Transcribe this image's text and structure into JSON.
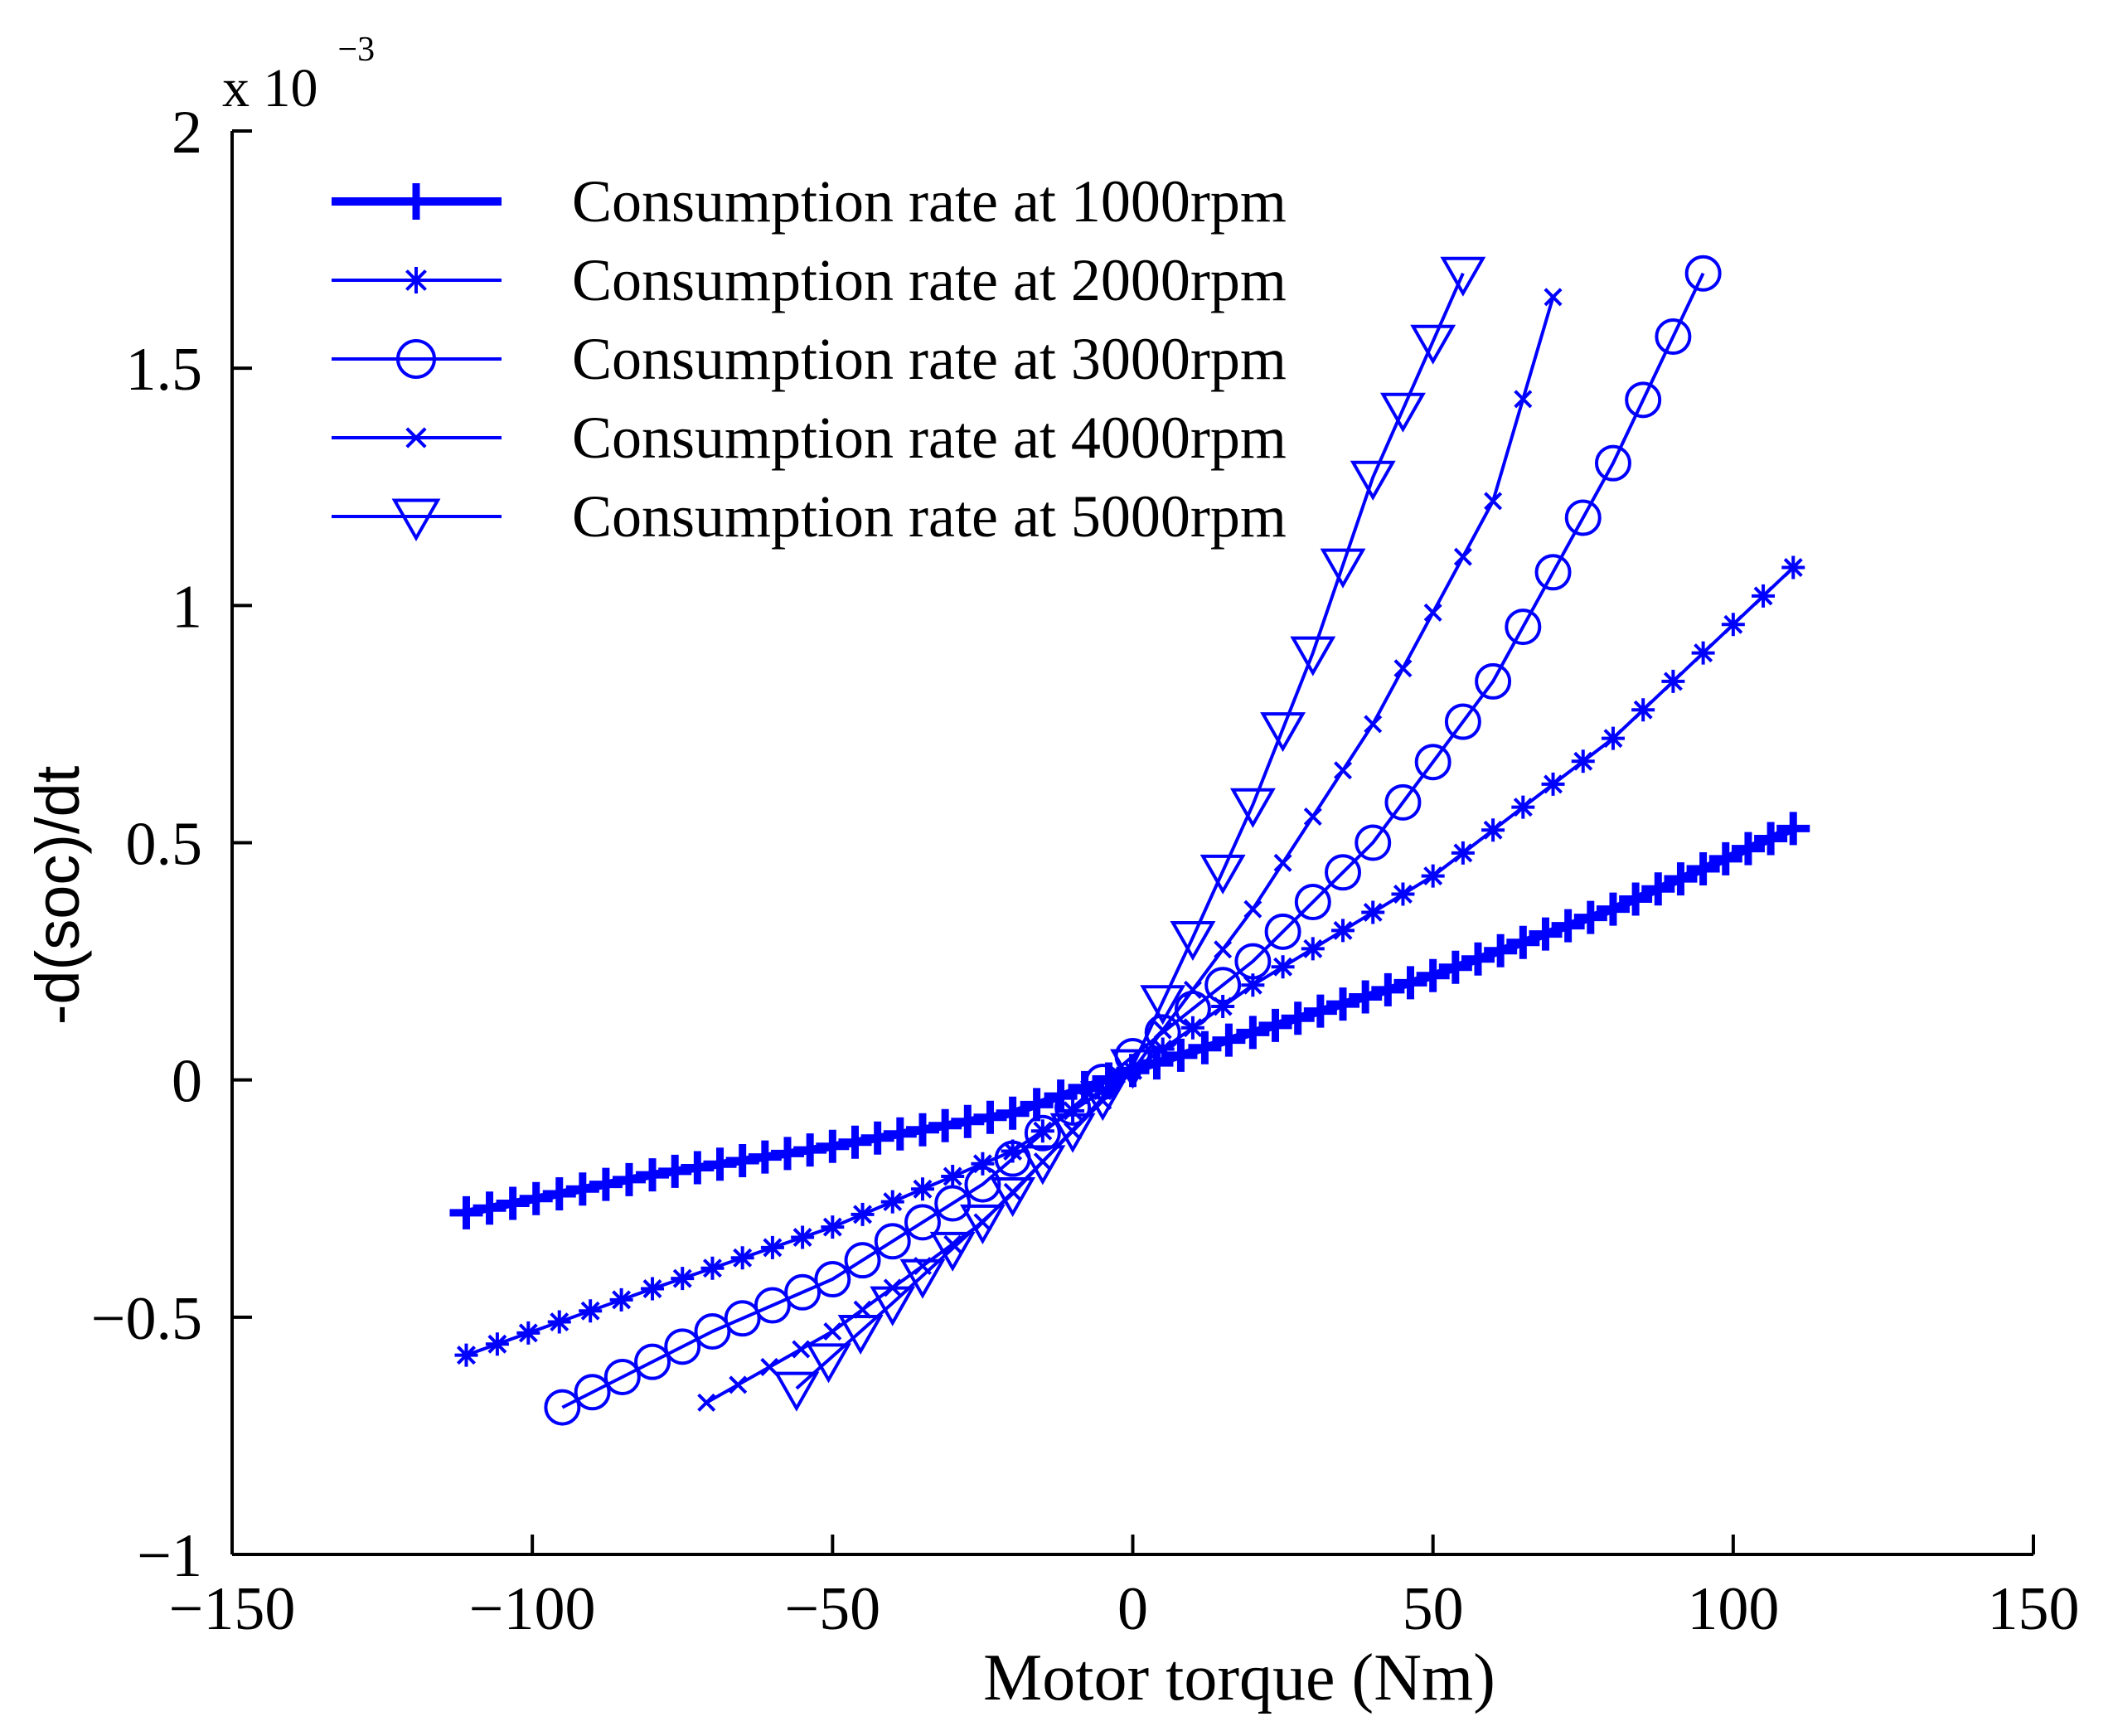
{
  "chart_data": {
    "type": "line",
    "title": "",
    "xlabel": "Motor torque (Nm)",
    "ylabel": "-d(soc)/dt",
    "y_multiplier_base": "x 10",
    "y_multiplier_exponent": "−3",
    "xlim": [
      -150,
      150
    ],
    "ylim": [
      -1,
      2
    ],
    "xticks": [
      -150,
      -100,
      -50,
      0,
      50,
      100,
      150
    ],
    "xtick_labels": [
      "−150",
      "−100",
      "−50",
      "0",
      "50",
      "100",
      "150"
    ],
    "yticks": [
      -1,
      -0.5,
      0,
      0.5,
      1,
      1.5,
      2
    ],
    "ytick_labels": [
      "−1",
      "−0.5",
      "0",
      "0.5",
      "1",
      "1.5",
      "2"
    ],
    "grid": false,
    "legend_position": "top-left",
    "line_color": "#0000ff",
    "series": [
      {
        "name": "Consumption rate at 1000rpm",
        "marker": "plus",
        "points": [
          [
            -111,
            -0.28
          ],
          [
            -80,
            -0.2
          ],
          [
            -50,
            -0.14
          ],
          [
            -20,
            -0.07
          ],
          [
            0,
            0.02
          ],
          [
            20,
            0.1
          ],
          [
            50,
            0.22
          ],
          [
            80,
            0.36
          ],
          [
            110,
            0.53
          ]
        ]
      },
      {
        "name": "Consumption rate at 2000rpm",
        "marker": "asterisk",
        "points": [
          [
            -111,
            -0.58
          ],
          [
            -80,
            -0.44
          ],
          [
            -50,
            -0.31
          ],
          [
            -20,
            -0.15
          ],
          [
            0,
            0.02
          ],
          [
            20,
            0.2
          ],
          [
            50,
            0.43
          ],
          [
            80,
            0.72
          ],
          [
            110,
            1.08
          ]
        ]
      },
      {
        "name": "Consumption rate at 3000rpm",
        "marker": "circle",
        "points": [
          [
            -95,
            -0.69
          ],
          [
            -70,
            -0.53
          ],
          [
            -50,
            -0.42
          ],
          [
            -25,
            -0.22
          ],
          [
            0,
            0.05
          ],
          [
            20,
            0.25
          ],
          [
            40,
            0.5
          ],
          [
            60,
            0.84
          ],
          [
            80,
            1.3
          ],
          [
            95,
            1.7
          ]
        ]
      },
      {
        "name": "Consumption rate at 4000rpm",
        "marker": "x",
        "points": [
          [
            -71,
            -0.68
          ],
          [
            -50,
            -0.53
          ],
          [
            -25,
            -0.3
          ],
          [
            0,
            0.02
          ],
          [
            20,
            0.36
          ],
          [
            40,
            0.75
          ],
          [
            60,
            1.22
          ],
          [
            70,
            1.65
          ]
        ]
      },
      {
        "name": "Consumption rate at 5000rpm",
        "marker": "triangle-down",
        "points": [
          [
            -56,
            -0.65
          ],
          [
            -40,
            -0.47
          ],
          [
            -20,
            -0.24
          ],
          [
            0,
            0.03
          ],
          [
            10,
            0.3
          ],
          [
            20,
            0.58
          ],
          [
            30,
            0.9
          ],
          [
            40,
            1.27
          ],
          [
            55,
            1.7
          ]
        ]
      }
    ]
  }
}
